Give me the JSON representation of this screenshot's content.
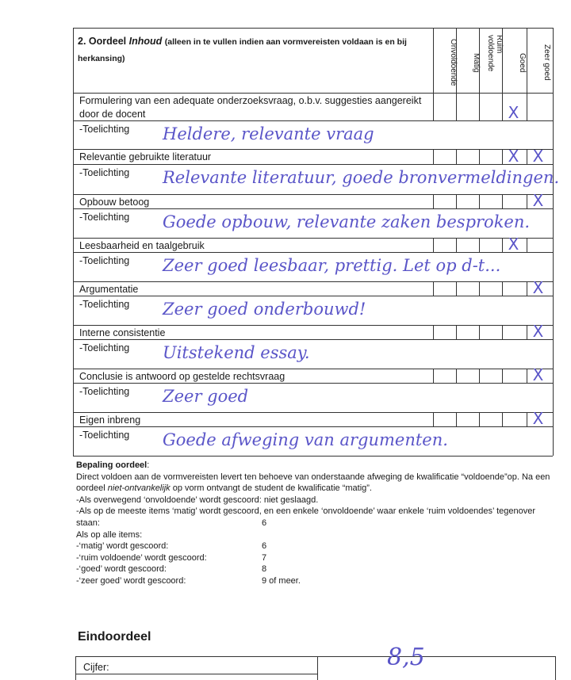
{
  "header": {
    "number": "2. Oordeel ",
    "title_italic": "Inhoud",
    "subtitle": "(alleen in te vullen indien aan vormvereisten voldaan is en bij herkansing)"
  },
  "columns": [
    "Onvoldoende",
    "Matig",
    "Ruim voldoende",
    "Goed",
    "Zeer goed"
  ],
  "toelichting_label": "-Toelichting",
  "rows": [
    {
      "criterion": "Formulering van een adequate onderzoeksvraag, o.b.v. suggesties aangereikt door de docent",
      "marks": [
        "Goed"
      ],
      "note": "Heldere, relevante vraag"
    },
    {
      "criterion": "Relevantie gebruikte literatuur",
      "marks": [
        "Goed",
        "Zeer goed"
      ],
      "note": "Relevante literatuur, goede bronvermeldingen."
    },
    {
      "criterion": "Opbouw betoog",
      "marks": [
        "Zeer goed"
      ],
      "note": "Goede opbouw, relevante zaken besproken."
    },
    {
      "criterion": "Leesbaarheid en taalgebruik",
      "marks": [
        "Goed"
      ],
      "note": "Zeer goed leesbaar, prettig. Let op d-t..."
    },
    {
      "criterion": "Argumentatie",
      "marks": [
        "Zeer goed"
      ],
      "note": "Zeer goed onderbouwd!"
    },
    {
      "criterion": "Interne consistentie",
      "marks": [
        "Zeer goed"
      ],
      "note": "Uitstekend essay."
    },
    {
      "criterion": "Conclusie is antwoord op gestelde rechtsvraag",
      "marks": [
        "Zeer goed"
      ],
      "note": "Zeer goed"
    },
    {
      "criterion": "Eigen inbreng",
      "marks": [
        "Zeer goed"
      ],
      "note": "Goede afweging van argumenten."
    }
  ],
  "mark_symbol": "X",
  "bepaling": {
    "title": "Bepaling oordeel",
    "p1a": "Direct voldoen aan de vormvereisten levert ten behoeve van onderstaande afweging de kwalificatie “voldoende”op. Na een oordeel ",
    "p1i": "niet-ontvankelijk",
    "p1b": " op vorm ontvangt de student de kwalificatie “matig”.",
    "l1": "-Als overwegend ‘onvoldoende’ wordt gescoord: niet geslaagd.",
    "l2": "-Als op de meeste items ‘matig’ wordt gescoord, en een enkele ‘onvoldoende’ waar enkele ‘ruim voldoendes’ tegenover",
    "l3": "staan:",
    "l3v": "6",
    "l4": "Als op alle items:",
    "scale": [
      {
        "label": "-‘matig’ wordt gescoord:",
        "value": "6"
      },
      {
        "label": "-‘ruim voldoende’ wordt gescoord:",
        "value": "7"
      },
      {
        "label": "-‘goed’ wordt gescoord:",
        "value": "8"
      },
      {
        "label": "-‘zeer goed’ wordt gescoord:",
        "value": "9 of meer."
      }
    ]
  },
  "eindoordeel": {
    "title": "Eindoordeel",
    "cijfer_label": "Cijfer:",
    "cijfer_value": "8,5"
  }
}
